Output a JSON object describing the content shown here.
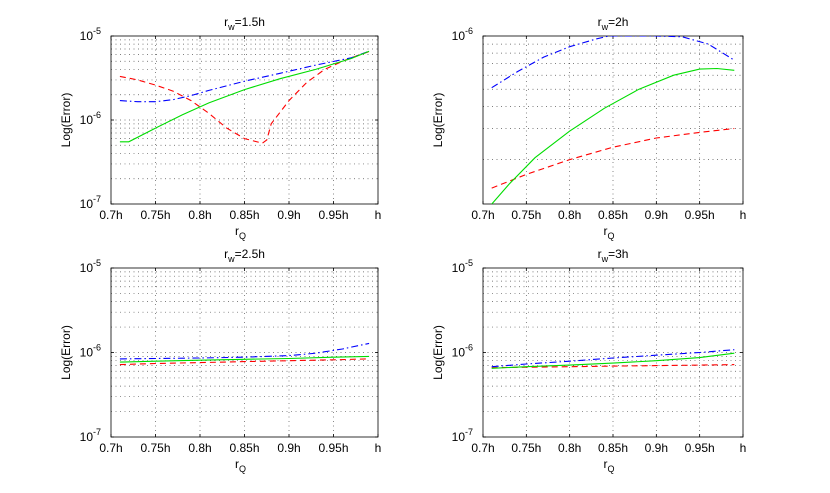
{
  "chart_data": [
    {
      "type": "line",
      "title": "r_w=1.5h",
      "title_main": "r",
      "title_sub": "w",
      "title_rest": "=1.5h",
      "xlabel_main": "r",
      "xlabel_sub": "Q",
      "ylabel": "Log(Error)",
      "yscale": "log",
      "xlim": [
        0.7,
        1.0
      ],
      "ylim_exp": [
        -7,
        -5
      ],
      "x_ticks": [
        {
          "v": 0.7,
          "label": "0.7h"
        },
        {
          "v": 0.75,
          "label": "0.75h"
        },
        {
          "v": 0.8,
          "label": "0.8h"
        },
        {
          "v": 0.85,
          "label": "0.85h"
        },
        {
          "v": 0.9,
          "label": "0.9h"
        },
        {
          "v": 0.95,
          "label": "0.95h"
        },
        {
          "v": 1.0,
          "label": "h"
        }
      ],
      "y_ticks": [
        {
          "exp": -7,
          "base": "10",
          "sup": "-7"
        },
        {
          "exp": -6,
          "base": "10",
          "sup": "-6"
        },
        {
          "exp": -5,
          "base": "10",
          "sup": "-5"
        }
      ],
      "series": [
        {
          "name": "red-dashed",
          "color": "#ff0000",
          "dash": "6 4",
          "x": [
            0.71,
            0.73,
            0.75,
            0.77,
            0.79,
            0.81,
            0.83,
            0.85,
            0.87,
            0.875,
            0.88,
            0.9,
            0.92,
            0.94,
            0.96,
            0.98,
            0.99
          ],
          "y": [
            3.3e-06,
            3e-06,
            2.6e-06,
            2.2e-06,
            1.7e-06,
            1.2e-06,
            8e-07,
            6e-07,
            5.3e-07,
            5.8e-07,
            9e-07,
            1.7e-06,
            2.8e-06,
            4e-06,
            5e-06,
            6e-06,
            6.5e-06
          ]
        },
        {
          "name": "blue-dashdot",
          "color": "#0000ff",
          "dash": "7 3 1.5 3",
          "x": [
            0.71,
            0.73,
            0.75,
            0.77,
            0.79,
            0.81,
            0.85,
            0.89,
            0.93,
            0.97,
            0.99
          ],
          "y": [
            1.7e-06,
            1.65e-06,
            1.65e-06,
            1.75e-06,
            1.95e-06,
            2.25e-06,
            2.9e-06,
            3.6e-06,
            4.5e-06,
            5.5e-06,
            6.6e-06
          ]
        },
        {
          "name": "green-solid",
          "color": "#00dd00",
          "dash": "",
          "x": [
            0.71,
            0.72,
            0.75,
            0.78,
            0.81,
            0.85,
            0.89,
            0.93,
            0.97,
            0.99
          ],
          "y": [
            5.5e-07,
            5.5e-07,
            8e-07,
            1.15e-06,
            1.6e-06,
            2.3e-06,
            3.1e-06,
            4e-06,
            5.4e-06,
            6.6e-06
          ]
        }
      ]
    },
    {
      "type": "line",
      "title": "r_w=2h",
      "title_main": "r",
      "title_sub": "w",
      "title_rest": "=2h",
      "xlabel_main": "r",
      "xlabel_sub": "Q",
      "ylabel": "Log(Error)",
      "yscale": "log",
      "xlim": [
        0.7,
        1.0
      ],
      "ylim_exp": [
        -6.95,
        -6
      ],
      "x_ticks": [
        {
          "v": 0.7,
          "label": "0.7h"
        },
        {
          "v": 0.75,
          "label": "0.75h"
        },
        {
          "v": 0.8,
          "label": "0.8h"
        },
        {
          "v": 0.85,
          "label": "0.85h"
        },
        {
          "v": 0.9,
          "label": "0.9h"
        },
        {
          "v": 0.95,
          "label": "0.95h"
        },
        {
          "v": 1.0,
          "label": "h"
        }
      ],
      "y_ticks": [
        {
          "exp": -6,
          "base": "10",
          "sup": "-6"
        }
      ],
      "series": [
        {
          "name": "red-dashed",
          "color": "#ff0000",
          "dash": "6 4",
          "x": [
            0.71,
            0.75,
            0.8,
            0.85,
            0.9,
            0.95,
            0.99
          ],
          "y": [
            1.38e-07,
            1.65e-07,
            2e-07,
            2.35e-07,
            2.65e-07,
            2.85e-07,
            3e-07
          ]
        },
        {
          "name": "blue-dashdot",
          "color": "#0000ff",
          "dash": "7 3 1.5 3",
          "x": [
            0.71,
            0.74,
            0.77,
            0.8,
            0.83,
            0.845,
            0.9,
            0.93,
            0.96,
            0.99
          ],
          "y": [
            5.1e-07,
            6.3e-07,
            7.6e-07,
            8.7e-07,
            9.6e-07,
            1e-06,
            1e-06,
            9.9e-07,
            9e-07,
            7.3e-07
          ]
        },
        {
          "name": "green-solid",
          "color": "#00dd00",
          "dash": "",
          "x": [
            0.71,
            0.73,
            0.76,
            0.8,
            0.84,
            0.88,
            0.92,
            0.95,
            0.97,
            0.99
          ],
          "y": [
            1.12e-07,
            1.45e-07,
            2.05e-07,
            2.9e-07,
            3.9e-07,
            5e-07,
            6e-07,
            6.5e-07,
            6.55e-07,
            6.4e-07
          ]
        }
      ]
    },
    {
      "type": "line",
      "title": "r_w=2.5h",
      "title_main": "r",
      "title_sub": "w",
      "title_rest": "=2.5h",
      "xlabel_main": "r",
      "xlabel_sub": "Q",
      "ylabel": "Log(Error)",
      "yscale": "log",
      "xlim": [
        0.7,
        1.0
      ],
      "ylim_exp": [
        -7,
        -5
      ],
      "x_ticks": [
        {
          "v": 0.7,
          "label": "0.7h"
        },
        {
          "v": 0.75,
          "label": "0.75h"
        },
        {
          "v": 0.8,
          "label": "0.8h"
        },
        {
          "v": 0.85,
          "label": "0.85h"
        },
        {
          "v": 0.9,
          "label": "0.9h"
        },
        {
          "v": 0.95,
          "label": "0.95h"
        },
        {
          "v": 1.0,
          "label": "h"
        }
      ],
      "y_ticks": [
        {
          "exp": -7,
          "base": "10",
          "sup": "-7"
        },
        {
          "exp": -6,
          "base": "10",
          "sup": "-6"
        },
        {
          "exp": -5,
          "base": "10",
          "sup": "-5"
        }
      ],
      "series": [
        {
          "name": "red-dashed",
          "color": "#ff0000",
          "dash": "6 4",
          "x": [
            0.71,
            0.75,
            0.8,
            0.85,
            0.9,
            0.95,
            0.99
          ],
          "y": [
            7.2e-07,
            7.4e-07,
            7.6e-07,
            7.8e-07,
            8e-07,
            8.2e-07,
            8.4e-07
          ]
        },
        {
          "name": "blue-dashdot",
          "color": "#0000ff",
          "dash": "7 3 1.5 3",
          "x": [
            0.71,
            0.75,
            0.8,
            0.85,
            0.9,
            0.93,
            0.96,
            0.99
          ],
          "y": [
            8.4e-07,
            8.5e-07,
            8.6e-07,
            8.8e-07,
            9.2e-07,
            9.8e-07,
            1.1e-06,
            1.28e-06
          ]
        },
        {
          "name": "green-solid",
          "color": "#00dd00",
          "dash": "",
          "x": [
            0.71,
            0.75,
            0.8,
            0.85,
            0.9,
            0.95,
            0.99
          ],
          "y": [
            7.7e-07,
            7.9e-07,
            8.1e-07,
            8.3e-07,
            8.5e-07,
            8.8e-07,
            9e-07
          ]
        }
      ]
    },
    {
      "type": "line",
      "title": "r_w=3h",
      "title_main": "r",
      "title_sub": "w",
      "title_rest": "=3h",
      "xlabel_main": "r",
      "xlabel_sub": "Q",
      "ylabel": "Log(Error)",
      "yscale": "log",
      "xlim": [
        0.7,
        1.0
      ],
      "ylim_exp": [
        -7,
        -5
      ],
      "x_ticks": [
        {
          "v": 0.7,
          "label": "0.7h"
        },
        {
          "v": 0.75,
          "label": "0.75h"
        },
        {
          "v": 0.8,
          "label": "0.8h"
        },
        {
          "v": 0.85,
          "label": "0.85h"
        },
        {
          "v": 0.9,
          "label": "0.9h"
        },
        {
          "v": 0.95,
          "label": "0.95h"
        },
        {
          "v": 1.0,
          "label": "h"
        }
      ],
      "y_ticks": [
        {
          "exp": -7,
          "base": "10",
          "sup": "-7"
        },
        {
          "exp": -6,
          "base": "10",
          "sup": "-6"
        },
        {
          "exp": -5,
          "base": "10",
          "sup": "-5"
        }
      ],
      "series": [
        {
          "name": "red-dashed",
          "color": "#ff0000",
          "dash": "6 4",
          "x": [
            0.71,
            0.75,
            0.8,
            0.85,
            0.9,
            0.95,
            0.99
          ],
          "y": [
            6.6e-07,
            6.7e-07,
            6.8e-07,
            6.9e-07,
            7e-07,
            7.1e-07,
            7.2e-07
          ]
        },
        {
          "name": "blue-dashdot",
          "color": "#0000ff",
          "dash": "7 3 1.5 3",
          "x": [
            0.71,
            0.75,
            0.8,
            0.85,
            0.9,
            0.95,
            0.99
          ],
          "y": [
            6.8e-07,
            7.3e-07,
            7.9e-07,
            8.6e-07,
            9.3e-07,
            1e-06,
            1.08e-06
          ]
        },
        {
          "name": "green-solid",
          "color": "#00dd00",
          "dash": "",
          "x": [
            0.71,
            0.75,
            0.8,
            0.85,
            0.9,
            0.95,
            0.99
          ],
          "y": [
            6.5e-07,
            6.8e-07,
            7.1e-07,
            7.5e-07,
            8e-07,
            8.7e-07,
            9.8e-07
          ]
        }
      ]
    }
  ]
}
